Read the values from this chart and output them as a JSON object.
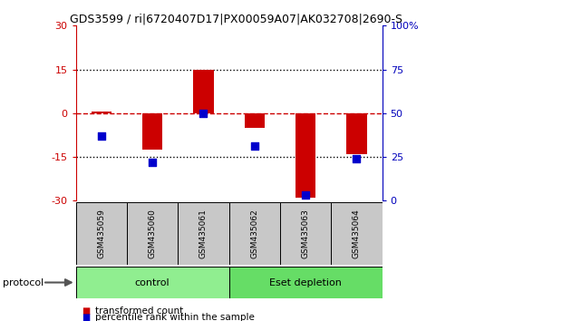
{
  "title": "GDS3599 / ri|6720407D17|PX00059A07|AK032708|2690-S",
  "samples": [
    "GSM435059",
    "GSM435060",
    "GSM435061",
    "GSM435062",
    "GSM435063",
    "GSM435064"
  ],
  "transformed_count": [
    0.5,
    -12.5,
    15.0,
    -5.0,
    -29.0,
    -14.0
  ],
  "percentile_rank": [
    37,
    22,
    50,
    31,
    3,
    24
  ],
  "groups": [
    {
      "label": "control",
      "span": [
        0,
        3
      ],
      "color": "#90EE90"
    },
    {
      "label": "Eset depletion",
      "span": [
        3,
        6
      ],
      "color": "#66DD66"
    }
  ],
  "ylim_left": [
    -30,
    30
  ],
  "yticks_left": [
    -30,
    -15,
    0,
    15,
    30
  ],
  "ytick_labels_left": [
    "-30",
    "-15",
    "0",
    "15",
    "30"
  ],
  "ytick_labels_right": [
    "0",
    "25",
    "50",
    "75",
    "100%"
  ],
  "bar_color": "#CC0000",
  "dot_color": "#0000CC",
  "zero_line_color": "#CC0000",
  "grid_line_color": "#000000",
  "left_axis_color": "#CC0000",
  "right_axis_color": "#0000BB",
  "background_color": "#ffffff",
  "legend_label_bar": "transformed count",
  "legend_label_dot": "percentile rank within the sample",
  "bar_width": 0.4,
  "dot_size": 40,
  "sample_box_color": "#C8C8C8",
  "protocol_arrow_color": "#555555"
}
